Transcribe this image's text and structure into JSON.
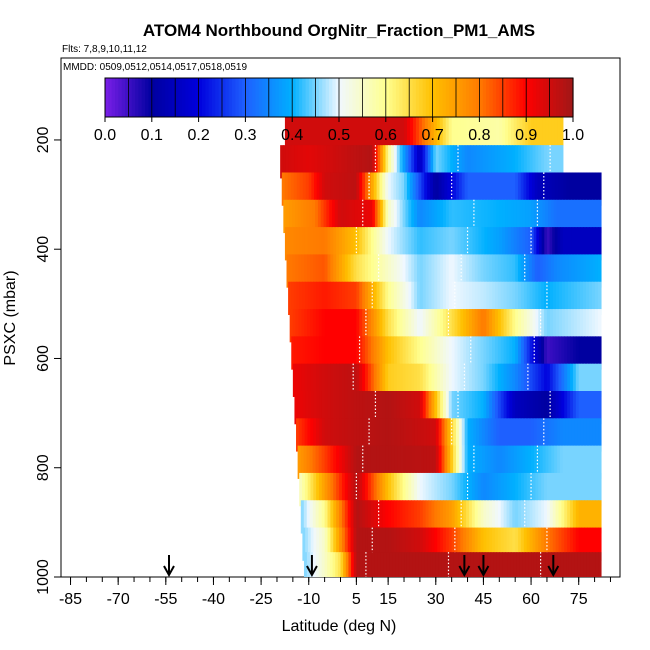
{
  "chart_data": {
    "type": "heatmap",
    "title": "ATOM4 Northbound OrgNitr_Fraction_PM1_AMS",
    "flights_label": "Flts: 7,8,9,10,11,12",
    "dates_label": "MMDD: 0509,0512,0514,0517,0518,0519",
    "xlabel": "Latitude (deg N)",
    "ylabel": "PSXC (mbar)",
    "xlim": [
      -88,
      88
    ],
    "ylim": [
      1000,
      50
    ],
    "x_ticks": [
      -85,
      -70,
      -55,
      -40,
      -25,
      -10,
      5,
      15,
      30,
      45,
      60,
      75
    ],
    "y_ticks": [
      200,
      400,
      600,
      800,
      1000
    ],
    "colorbar": {
      "ticks": [
        "0.0",
        "0.1",
        "0.2",
        "0.3",
        "0.4",
        "0.5",
        "0.6",
        "0.7",
        "0.8",
        "0.9",
        "1.0"
      ],
      "range": [
        0,
        1
      ],
      "stops": [
        "#7a1fe8",
        "#0000a0",
        "#0000dd",
        "#1e60ff",
        "#00b0ff",
        "#f0f8ff",
        "#ffff90",
        "#ffc000",
        "#ff7a00",
        "#ff0000",
        "#a01818"
      ]
    },
    "profile_latitudes": [
      -54,
      -9,
      39,
      45,
      67
    ],
    "rows": [
      {
        "p": 180,
        "x0": -17.5,
        "x1": 70,
        "segments": [
          [
            -17.5,
            0.95
          ],
          [
            20,
            0.95
          ],
          [
            35,
            0.6
          ],
          [
            50,
            0.58
          ],
          [
            60,
            0.68
          ],
          [
            70,
            0.68
          ]
        ]
      },
      {
        "p": 240,
        "x0": -19,
        "x1": 71,
        "segments": [
          [
            -19,
            0.95
          ],
          [
            -10,
            0.93
          ],
          [
            5,
            0.97
          ],
          [
            10,
            0.98
          ],
          [
            15,
            0.6
          ],
          [
            25,
            0.15
          ],
          [
            30,
            0.45
          ],
          [
            40,
            0.35
          ],
          [
            55,
            0.4
          ],
          [
            65,
            0.45
          ],
          [
            70,
            0.45
          ]
        ]
      },
      {
        "p": 290,
        "x0": -18.5,
        "x1": 82,
        "segments": [
          [
            -18.5,
            0.8
          ],
          [
            -10,
            0.85
          ],
          [
            -5,
            0.95
          ],
          [
            5,
            0.97
          ],
          [
            15,
            0.5
          ],
          [
            20,
            0.45
          ],
          [
            30,
            0.1
          ],
          [
            40,
            0.3
          ],
          [
            55,
            0.3
          ],
          [
            62,
            0.15
          ],
          [
            72,
            0.1
          ],
          [
            82,
            0.1
          ]
        ]
      },
      {
        "p": 340,
        "x0": -18,
        "x1": 82,
        "segments": [
          [
            -18,
            0.75
          ],
          [
            -8,
            0.8
          ],
          [
            0,
            0.95
          ],
          [
            10,
            0.92
          ],
          [
            15,
            0.55
          ],
          [
            25,
            0.35
          ],
          [
            35,
            0.42
          ],
          [
            50,
            0.4
          ],
          [
            60,
            0.38
          ],
          [
            68,
            0.32
          ],
          [
            82,
            0.32
          ]
        ]
      },
      {
        "p": 390,
        "x0": -17.5,
        "x1": 82,
        "segments": [
          [
            -17.5,
            0.78
          ],
          [
            -5,
            0.8
          ],
          [
            5,
            0.7
          ],
          [
            15,
            0.5
          ],
          [
            25,
            0.42
          ],
          [
            35,
            0.45
          ],
          [
            50,
            0.38
          ],
          [
            60,
            0.3
          ],
          [
            65,
            0.05
          ],
          [
            70,
            0.15
          ],
          [
            82,
            0.15
          ]
        ]
      },
      {
        "p": 440,
        "x0": -17,
        "x1": 82,
        "segments": [
          [
            -17,
            0.8
          ],
          [
            -5,
            0.83
          ],
          [
            5,
            0.65
          ],
          [
            15,
            0.55
          ],
          [
            25,
            0.45
          ],
          [
            35,
            0.5
          ],
          [
            45,
            0.45
          ],
          [
            55,
            0.42
          ],
          [
            62,
            0.3
          ],
          [
            68,
            0.35
          ],
          [
            82,
            0.4
          ]
        ]
      },
      {
        "p": 490,
        "x0": -16.5,
        "x1": 82,
        "segments": [
          [
            -16.5,
            0.85
          ],
          [
            -5,
            0.88
          ],
          [
            5,
            0.85
          ],
          [
            15,
            0.6
          ],
          [
            25,
            0.45
          ],
          [
            35,
            0.5
          ],
          [
            45,
            0.48
          ],
          [
            55,
            0.45
          ],
          [
            65,
            0.4
          ],
          [
            82,
            0.45
          ]
        ]
      },
      {
        "p": 540,
        "x0": -16,
        "x1": 82,
        "segments": [
          [
            -16,
            0.85
          ],
          [
            -5,
            0.9
          ],
          [
            5,
            0.9
          ],
          [
            15,
            0.65
          ],
          [
            25,
            0.5
          ],
          [
            35,
            0.65
          ],
          [
            45,
            0.8
          ],
          [
            55,
            0.6
          ],
          [
            65,
            0.45
          ],
          [
            82,
            0.5
          ]
        ]
      },
      {
        "p": 590,
        "x0": -15.5,
        "x1": 82,
        "segments": [
          [
            -15.5,
            0.88
          ],
          [
            -5,
            0.9
          ],
          [
            5,
            0.9
          ],
          [
            15,
            0.7
          ],
          [
            25,
            0.6
          ],
          [
            35,
            0.5
          ],
          [
            45,
            0.45
          ],
          [
            55,
            0.4
          ],
          [
            65,
            0.05
          ],
          [
            75,
            0.1
          ],
          [
            82,
            0.1
          ]
        ]
      },
      {
        "p": 640,
        "x0": -15,
        "x1": 82,
        "segments": [
          [
            -15,
            0.92
          ],
          [
            -5,
            0.95
          ],
          [
            5,
            0.97
          ],
          [
            15,
            0.68
          ],
          [
            25,
            0.65
          ],
          [
            35,
            0.5
          ],
          [
            45,
            0.45
          ],
          [
            55,
            0.35
          ],
          [
            65,
            0.2
          ],
          [
            75,
            0.45
          ],
          [
            82,
            0.45
          ]
        ]
      },
      {
        "p": 690,
        "x0": -14.5,
        "x1": 82,
        "segments": [
          [
            -14.5,
            0.92
          ],
          [
            -5,
            0.95
          ],
          [
            5,
            0.97
          ],
          [
            15,
            0.98
          ],
          [
            25,
            0.95
          ],
          [
            35,
            0.45
          ],
          [
            45,
            0.4
          ],
          [
            55,
            0.15
          ],
          [
            65,
            0.1
          ],
          [
            75,
            0.3
          ],
          [
            82,
            0.3
          ]
        ]
      },
      {
        "p": 740,
        "x0": -14,
        "x1": 82,
        "segments": [
          [
            -14,
            0.85
          ],
          [
            -5,
            0.95
          ],
          [
            5,
            0.97
          ],
          [
            15,
            0.98
          ],
          [
            30,
            0.95
          ],
          [
            40,
            0.4
          ],
          [
            50,
            0.3
          ],
          [
            60,
            0.3
          ],
          [
            70,
            0.35
          ],
          [
            82,
            0.35
          ]
        ]
      },
      {
        "p": 790,
        "x0": -13.5,
        "x1": 82,
        "segments": [
          [
            -13.5,
            0.75
          ],
          [
            -5,
            0.85
          ],
          [
            5,
            0.98
          ],
          [
            15,
            0.98
          ],
          [
            30,
            0.97
          ],
          [
            40,
            0.4
          ],
          [
            50,
            0.35
          ],
          [
            60,
            0.4
          ],
          [
            70,
            0.45
          ],
          [
            82,
            0.45
          ]
        ]
      },
      {
        "p": 840,
        "x0": -13,
        "x1": 82,
        "segments": [
          [
            -13,
            0.55
          ],
          [
            -5,
            0.75
          ],
          [
            5,
            0.98
          ],
          [
            15,
            0.7
          ],
          [
            25,
            0.5
          ],
          [
            35,
            0.45
          ],
          [
            45,
            0.35
          ],
          [
            55,
            0.4
          ],
          [
            65,
            0.45
          ],
          [
            82,
            0.45
          ]
        ]
      },
      {
        "p": 890,
        "x0": -12.5,
        "x1": 82,
        "segments": [
          [
            -12.5,
            0.45
          ],
          [
            -5,
            0.6
          ],
          [
            5,
            0.98
          ],
          [
            15,
            0.9
          ],
          [
            25,
            0.85
          ],
          [
            35,
            0.75
          ],
          [
            45,
            0.55
          ],
          [
            55,
            0.45
          ],
          [
            65,
            0.5
          ],
          [
            75,
            0.72
          ],
          [
            82,
            0.72
          ]
        ]
      },
      {
        "p": 940,
        "x0": -12,
        "x1": 82,
        "segments": [
          [
            -12,
            0.45
          ],
          [
            -5,
            0.55
          ],
          [
            5,
            0.98
          ],
          [
            15,
            0.98
          ],
          [
            25,
            0.95
          ],
          [
            35,
            0.85
          ],
          [
            45,
            0.7
          ],
          [
            55,
            0.65
          ],
          [
            65,
            0.8
          ],
          [
            75,
            0.9
          ],
          [
            82,
            0.9
          ]
        ]
      },
      {
        "p": 985,
        "x0": -11.5,
        "x1": 82,
        "segments": [
          [
            -11.5,
            0.45
          ],
          [
            -5,
            0.55
          ],
          [
            0,
            0.65
          ],
          [
            5,
            0.98
          ],
          [
            20,
            0.98
          ],
          [
            40,
            0.98
          ],
          [
            60,
            0.98
          ],
          [
            82,
            0.98
          ]
        ]
      }
    ]
  }
}
